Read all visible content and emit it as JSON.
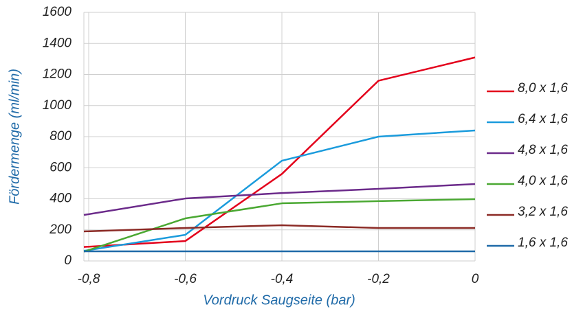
{
  "chart_data": {
    "type": "line",
    "x": [
      -0.81,
      -0.6,
      -0.4,
      -0.2,
      0
    ],
    "xlabel": "Vordruck Saugseite (bar)",
    "ylabel": "Fördermenge (ml/min)",
    "xlim": [
      -0.81,
      0
    ],
    "xticks": [
      {
        "value": -0.8,
        "label": "-0,8"
      },
      {
        "value": -0.6,
        "label": "-0,6"
      },
      {
        "value": -0.4,
        "label": "-0,4"
      },
      {
        "value": -0.2,
        "label": "-0,2"
      },
      0
    ],
    "ylim": [
      0,
      1600
    ],
    "yticks": [
      0,
      200,
      400,
      600,
      800,
      1000,
      1200,
      1400,
      1600
    ],
    "grid": true,
    "legend": "right",
    "series": [
      {
        "name": "8,0 x 1,6",
        "color": "#e3001b",
        "values": [
          90,
          128,
          560,
          1160,
          1310
        ]
      },
      {
        "name": "6,4 x 1,6",
        "color": "#1a9bdc",
        "values": [
          65,
          168,
          645,
          800,
          840
        ]
      },
      {
        "name": "4,8 x 1,6",
        "color": "#6b2a8a",
        "values": [
          296,
          402,
          437,
          464,
          495
        ]
      },
      {
        "name": "4,0 x 1,6",
        "color": "#4aa832",
        "values": [
          60,
          274,
          371,
          385,
          398
        ]
      },
      {
        "name": "3,2 x 1,6",
        "color": "#8b2a25",
        "values": [
          190,
          212,
          230,
          212,
          212
        ]
      },
      {
        "name": "1,6 x 1,6",
        "color": "#1f6aa8",
        "values": [
          62,
          62,
          62,
          62,
          62
        ]
      }
    ]
  }
}
